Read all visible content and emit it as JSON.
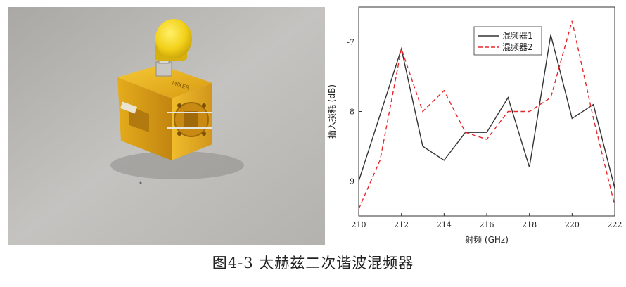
{
  "figure": {
    "caption": "图4-3 太赫兹二次谐波混频器",
    "photo_engraving": "MIXER"
  },
  "chart_data": {
    "type": "line",
    "xlabel": "射频 (GHz)",
    "ylabel": "插入损耗 (dB)",
    "xlim": [
      210,
      222
    ],
    "ylim": [
      -9.5,
      -6.5
    ],
    "y_reversed": true,
    "x_ticks": [
      "210",
      "212",
      "214",
      "216",
      "218",
      "220",
      "222"
    ],
    "y_ticks": [
      "-7",
      "8",
      "9"
    ],
    "legend_position": "top-right",
    "x": [
      210,
      211,
      212,
      213,
      214,
      215,
      216,
      217,
      218,
      219,
      220,
      221,
      222
    ],
    "series": [
      {
        "name": "混频器1",
        "color": "#333333",
        "dash": "solid",
        "values": [
          -9.0,
          -8.05,
          -7.1,
          -8.5,
          -8.7,
          -8.3,
          -8.3,
          -7.8,
          -8.8,
          -6.9,
          -8.1,
          -7.9,
          -9.1
        ]
      },
      {
        "name": "混频器2",
        "color": "#e8262a",
        "dash": "dashed",
        "values": [
          -9.4,
          -8.7,
          -7.1,
          -8.0,
          -7.7,
          -8.3,
          -8.4,
          -8.0,
          -8.0,
          -7.8,
          -6.7,
          -8.1,
          -9.35
        ]
      }
    ]
  }
}
